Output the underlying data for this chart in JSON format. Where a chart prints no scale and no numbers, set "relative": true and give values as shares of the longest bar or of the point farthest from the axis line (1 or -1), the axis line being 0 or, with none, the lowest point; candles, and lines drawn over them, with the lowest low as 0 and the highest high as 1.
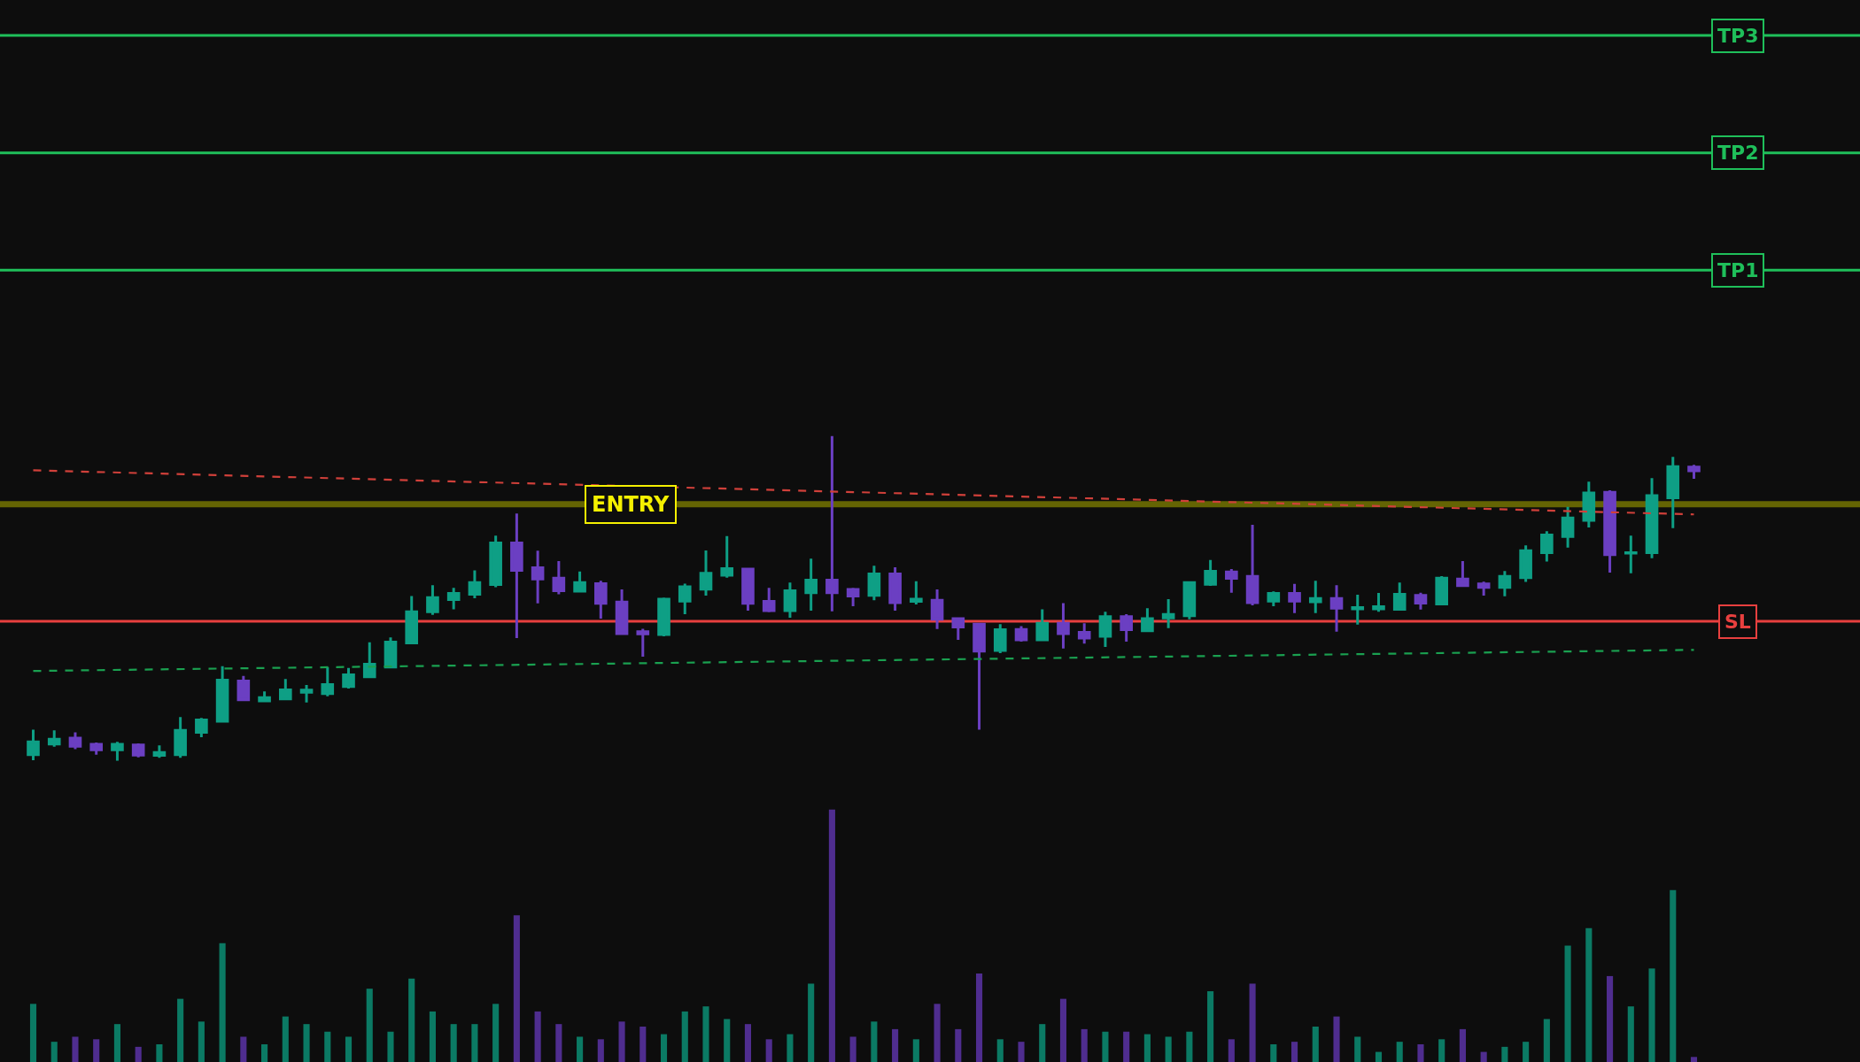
{
  "chart_data": [
    {
      "type": "candlestick",
      "relative": true,
      "categories": [
        null,
        null,
        null,
        null,
        null,
        null,
        null,
        null,
        null,
        null,
        null,
        null,
        null,
        null,
        null,
        null,
        null,
        null,
        null,
        null,
        null,
        null,
        null,
        null,
        null,
        null,
        null,
        null,
        null,
        null,
        null,
        null,
        null,
        null,
        null,
        null,
        null,
        null,
        null,
        null,
        null,
        null,
        null,
        null,
        null,
        null,
        null,
        null,
        null,
        null,
        null,
        null,
        null,
        null,
        null,
        null,
        null,
        null,
        null,
        null,
        null,
        null,
        null,
        null,
        null,
        null,
        null,
        null,
        null,
        null,
        null,
        null,
        null,
        null,
        null,
        null,
        null,
        null,
        null,
        null
      ],
      "ohlc": [
        [
          0.019,
          0.096,
          0.002,
          0.059
        ],
        [
          0.052,
          0.094,
          0.044,
          0.067
        ],
        [
          0.07,
          0.088,
          0.036,
          0.045
        ],
        [
          0.051,
          0.057,
          0.019,
          0.034
        ],
        [
          0.034,
          0.059,
          0.0,
          0.051
        ],
        [
          0.049,
          0.054,
          0.011,
          0.018
        ],
        [
          0.017,
          0.048,
          0.01,
          0.026
        ],
        [
          0.019,
          0.135,
          0.01,
          0.094
        ],
        [
          0.088,
          0.132,
          0.073,
          0.126
        ],
        [
          0.122,
          0.292,
          0.12,
          0.249
        ],
        [
          0.246,
          0.262,
          0.184,
          0.188
        ],
        [
          0.185,
          0.214,
          0.183,
          0.195
        ],
        [
          0.191,
          0.252,
          0.188,
          0.219
        ],
        [
          0.211,
          0.234,
          0.18,
          0.218
        ],
        [
          0.207,
          0.289,
          0.199,
          0.235
        ],
        [
          0.229,
          0.286,
          0.223,
          0.265
        ],
        [
          0.259,
          0.365,
          0.256,
          0.298
        ],
        [
          0.289,
          0.38,
          0.286,
          0.366
        ],
        [
          0.363,
          0.508,
          0.36,
          0.459
        ],
        [
          0.459,
          0.541,
          0.45,
          0.503
        ],
        [
          0.497,
          0.533,
          0.467,
          0.516
        ],
        [
          0.513,
          0.587,
          0.501,
          0.549
        ],
        [
          0.543,
          0.694,
          0.535,
          0.671
        ],
        [
          0.671,
          0.762,
          0.378,
          0.587
        ],
        [
          0.595,
          0.647,
          0.485,
          0.56
        ],
        [
          0.563,
          0.615,
          0.513,
          0.524
        ],
        [
          0.523,
          0.583,
          0.521,
          0.549
        ],
        [
          0.546,
          0.555,
          0.438,
          0.485
        ],
        [
          0.489,
          0.528,
          0.39,
          0.392
        ],
        [
          0.398,
          0.407,
          0.321,
          0.391
        ],
        [
          0.389,
          0.503,
          0.384,
          0.498
        ],
        [
          0.492,
          0.546,
          0.452,
          0.536
        ],
        [
          0.529,
          0.648,
          0.509,
          0.578
        ],
        [
          0.572,
          0.692,
          0.564,
          0.592
        ],
        [
          0.591,
          0.593,
          0.463,
          0.485
        ],
        [
          0.491,
          0.533,
          0.458,
          0.463
        ],
        [
          0.463,
          0.549,
          0.441,
          0.524
        ],
        [
          0.518,
          0.623,
          0.463,
          0.557
        ],
        [
          0.557,
          1.0,
          0.461,
          0.518
        ],
        [
          0.528,
          0.533,
          0.476,
          0.508
        ],
        [
          0.51,
          0.601,
          0.495,
          0.576
        ],
        [
          0.576,
          0.596,
          0.463,
          0.487
        ],
        [
          0.491,
          0.553,
          0.482,
          0.498
        ],
        [
          0.495,
          0.528,
          0.406,
          0.436
        ],
        [
          0.438,
          0.44,
          0.373,
          0.412
        ],
        [
          0.421,
          0.424,
          0.096,
          0.338
        ],
        [
          0.34,
          0.421,
          0.332,
          0.404
        ],
        [
          0.405,
          0.415,
          0.367,
          0.373
        ],
        [
          0.373,
          0.467,
          0.371,
          0.424
        ],
        [
          0.424,
          0.486,
          0.346,
          0.392
        ],
        [
          0.396,
          0.424,
          0.361,
          0.378
        ],
        [
          0.384,
          0.459,
          0.351,
          0.444
        ],
        [
          0.444,
          0.452,
          0.367,
          0.404
        ],
        [
          0.401,
          0.47,
          0.398,
          0.438
        ],
        [
          0.44,
          0.498,
          0.409,
          0.451
        ],
        [
          0.447,
          0.553,
          0.436,
          0.549
        ],
        [
          0.544,
          0.619,
          0.539,
          0.584
        ],
        [
          0.582,
          0.591,
          0.518,
          0.562
        ],
        [
          0.568,
          0.727,
          0.479,
          0.487
        ],
        [
          0.492,
          0.522,
          0.476,
          0.516
        ],
        [
          0.516,
          0.545,
          0.455,
          0.492
        ],
        [
          0.49,
          0.555,
          0.455,
          0.5
        ],
        [
          0.5,
          0.541,
          0.398,
          0.47
        ],
        [
          0.468,
          0.512,
          0.42,
          0.472
        ],
        [
          0.468,
          0.517,
          0.459,
          0.475
        ],
        [
          0.467,
          0.549,
          0.466,
          0.513
        ],
        [
          0.51,
          0.518,
          0.466,
          0.486
        ],
        [
          0.483,
          0.569,
          0.48,
          0.563
        ],
        [
          0.56,
          0.615,
          0.537,
          0.54
        ],
        [
          0.545,
          0.552,
          0.509,
          0.534
        ],
        [
          0.534,
          0.585,
          0.507,
          0.568
        ],
        [
          0.564,
          0.664,
          0.551,
          0.647
        ],
        [
          0.641,
          0.707,
          0.614,
          0.696
        ],
        [
          0.691,
          0.782,
          0.657,
          0.748
        ],
        [
          0.741,
          0.86,
          0.719,
          0.825
        ],
        [
          0.827,
          0.833,
          0.58,
          0.635
        ],
        [
          0.64,
          0.694,
          0.578,
          0.641
        ],
        [
          0.641,
          0.871,
          0.624,
          0.817
        ],
        [
          0.81,
          0.936,
          0.717,
          0.906
        ],
        [
          0.905,
          0.912,
          0.869,
          0.893
        ]
      ],
      "colors": [
        "#0e9f85",
        "#0e9f85",
        "#6b3fc2",
        "#6b3fc2",
        "#0e9f85",
        "#6b3fc2",
        "#0e9f85",
        "#0e9f85",
        "#0e9f85",
        "#0e9f85",
        "#6b3fc2",
        "#0e9f85",
        "#0e9f85",
        "#0e9f85",
        "#0e9f85",
        "#0e9f85",
        "#0e9f85",
        "#0e9f85",
        "#0e9f85",
        "#0e9f85",
        "#0e9f85",
        "#0e9f85",
        "#0e9f85",
        "#6b3fc2",
        "#6b3fc2",
        "#6b3fc2",
        "#0e9f85",
        "#6b3fc2",
        "#6b3fc2",
        "#6b3fc2",
        "#0e9f85",
        "#0e9f85",
        "#0e9f85",
        "#0e9f85",
        "#6b3fc2",
        "#6b3fc2",
        "#0e9f85",
        "#0e9f85",
        "#6b3fc2",
        "#6b3fc2",
        "#0e9f85",
        "#6b3fc2",
        "#0e9f85",
        "#6b3fc2",
        "#6b3fc2",
        "#6b3fc2",
        "#0e9f85",
        "#6b3fc2",
        "#0e9f85",
        "#6b3fc2",
        "#6b3fc2",
        "#0e9f85",
        "#6b3fc2",
        "#0e9f85",
        "#0e9f85",
        "#0e9f85",
        "#0e9f85",
        "#6b3fc2",
        "#6b3fc2",
        "#0e9f85",
        "#6b3fc2",
        "#0e9f85",
        "#6b3fc2",
        "#0e9f85",
        "#0e9f85",
        "#0e9f85",
        "#6b3fc2",
        "#0e9f85",
        "#6b3fc2",
        "#6b3fc2",
        "#0e9f85",
        "#0e9f85",
        "#0e9f85",
        "#0e9f85",
        "#0e9f85",
        "#6b3fc2",
        "#0e9f85",
        "#0e9f85",
        "#0e9f85",
        "#6b3fc2"
      ],
      "series": [
        {
          "type": "line",
          "values": [
            0.895,
            null,
            null,
            null,
            null,
            null,
            null,
            null,
            null,
            null,
            null,
            null,
            null,
            null,
            null,
            null,
            null,
            null,
            null,
            null,
            null,
            null,
            null,
            null,
            null,
            null,
            null,
            null,
            null,
            null,
            null,
            null,
            null,
            null,
            null,
            null,
            null,
            null,
            null,
            null,
            null,
            null,
            null,
            null,
            null,
            null,
            null,
            null,
            null,
            null,
            null,
            null,
            null,
            null,
            null,
            null,
            null,
            null,
            null,
            null,
            null,
            null,
            null,
            null,
            null,
            null,
            null,
            null,
            null,
            null,
            null,
            null,
            null,
            null,
            null,
            null,
            null,
            null,
            null,
            0.759
          ],
          "color": "#d0403a",
          "line_style": "dashed"
        },
        {
          "type": "line",
          "values": [
            0.277,
            null,
            null,
            null,
            null,
            null,
            null,
            null,
            null,
            null,
            null,
            null,
            null,
            null,
            null,
            null,
            null,
            null,
            null,
            null,
            null,
            null,
            null,
            null,
            null,
            null,
            null,
            null,
            null,
            null,
            null,
            null,
            null,
            null,
            null,
            null,
            null,
            null,
            null,
            null,
            null,
            null,
            null,
            null,
            null,
            null,
            null,
            null,
            null,
            null,
            null,
            null,
            null,
            null,
            null,
            null,
            null,
            null,
            null,
            null,
            null,
            null,
            null,
            null,
            null,
            null,
            null,
            null,
            null,
            null,
            null,
            null,
            null,
            null,
            null,
            null,
            null,
            null,
            null,
            0.342
          ],
          "color": "#1aa050",
          "line_style": "dashed"
        }
      ],
      "ref_lines": [
        {
          "axis": "y",
          "value": 2.234,
          "label": "TP3",
          "color": "#1fbf5a"
        },
        {
          "axis": "y",
          "value": 1.872,
          "label": "TP2",
          "color": "#1fbf5a"
        },
        {
          "axis": "y",
          "value": 1.511,
          "label": "TP1",
          "color": "#1fbf5a"
        },
        {
          "axis": "y",
          "value": 0.43,
          "label": "SL",
          "color": "#e8403f"
        }
      ],
      "bands": [
        {
          "axis": "y",
          "from": 0.781,
          "to": 0.8,
          "label": "ENTRY",
          "color": "#8a8a00"
        }
      ]
    },
    {
      "type": "bar",
      "relative": true,
      "categories": [
        null,
        null,
        null,
        null,
        null,
        null,
        null,
        null,
        null,
        null,
        null,
        null,
        null,
        null,
        null,
        null,
        null,
        null,
        null,
        null,
        null,
        null,
        null,
        null,
        null,
        null,
        null,
        null,
        null,
        null,
        null,
        null,
        null,
        null,
        null,
        null,
        null,
        null,
        null,
        null,
        null,
        null,
        null,
        null,
        null,
        null,
        null,
        null,
        null,
        null,
        null,
        null,
        null,
        null,
        null,
        null,
        null,
        null,
        null,
        null,
        null,
        null,
        null,
        null,
        null,
        null,
        null,
        null,
        null,
        null,
        null,
        null,
        null,
        null,
        null,
        null,
        null,
        null,
        null,
        null
      ],
      "values": [
        0.23,
        0.08,
        0.1,
        0.09,
        0.15,
        0.06,
        0.07,
        0.25,
        0.16,
        0.47,
        0.1,
        0.07,
        0.18,
        0.15,
        0.12,
        0.1,
        0.29,
        0.12,
        0.33,
        0.2,
        0.15,
        0.15,
        0.23,
        0.58,
        0.2,
        0.15,
        0.1,
        0.09,
        0.16,
        0.14,
        0.11,
        0.2,
        0.22,
        0.17,
        0.15,
        0.09,
        0.11,
        0.31,
        1.0,
        0.1,
        0.16,
        0.13,
        0.09,
        0.23,
        0.13,
        0.35,
        0.09,
        0.08,
        0.15,
        0.25,
        0.13,
        0.12,
        0.12,
        0.11,
        0.1,
        0.12,
        0.28,
        0.09,
        0.31,
        0.07,
        0.08,
        0.14,
        0.18,
        0.1,
        0.04,
        0.08,
        0.07,
        0.09,
        0.13,
        0.04,
        0.06,
        0.08,
        0.17,
        0.46,
        0.53,
        0.34,
        0.22,
        0.37,
        0.68,
        0.02
      ],
      "colors": [
        "#0b7a64",
        "#0b7a64",
        "#4f2d8f",
        "#4f2d8f",
        "#0b7a64",
        "#4f2d8f",
        "#0b7a64",
        "#0b7a64",
        "#0b7a64",
        "#0b7a64",
        "#4f2d8f",
        "#0b7a64",
        "#0b7a64",
        "#0b7a64",
        "#0b7a64",
        "#0b7a64",
        "#0b7a64",
        "#0b7a64",
        "#0b7a64",
        "#0b7a64",
        "#0b7a64",
        "#0b7a64",
        "#0b7a64",
        "#4f2d8f",
        "#4f2d8f",
        "#4f2d8f",
        "#0b7a64",
        "#4f2d8f",
        "#4f2d8f",
        "#4f2d8f",
        "#0b7a64",
        "#0b7a64",
        "#0b7a64",
        "#0b7a64",
        "#4f2d8f",
        "#4f2d8f",
        "#0b7a64",
        "#0b7a64",
        "#4f2d8f",
        "#4f2d8f",
        "#0b7a64",
        "#4f2d8f",
        "#0b7a64",
        "#4f2d8f",
        "#4f2d8f",
        "#4f2d8f",
        "#0b7a64",
        "#4f2d8f",
        "#0b7a64",
        "#4f2d8f",
        "#4f2d8f",
        "#0b7a64",
        "#4f2d8f",
        "#0b7a64",
        "#0b7a64",
        "#0b7a64",
        "#0b7a64",
        "#4f2d8f",
        "#4f2d8f",
        "#0b7a64",
        "#4f2d8f",
        "#0b7a64",
        "#4f2d8f",
        "#0b7a64",
        "#0b7a64",
        "#0b7a64",
        "#4f2d8f",
        "#0b7a64",
        "#4f2d8f",
        "#4f2d8f",
        "#0b7a64",
        "#0b7a64",
        "#0b7a64",
        "#0b7a64",
        "#0b7a64",
        "#4f2d8f",
        "#0b7a64",
        "#0b7a64",
        "#0b7a64",
        "#4f2d8f"
      ]
    }
  ]
}
